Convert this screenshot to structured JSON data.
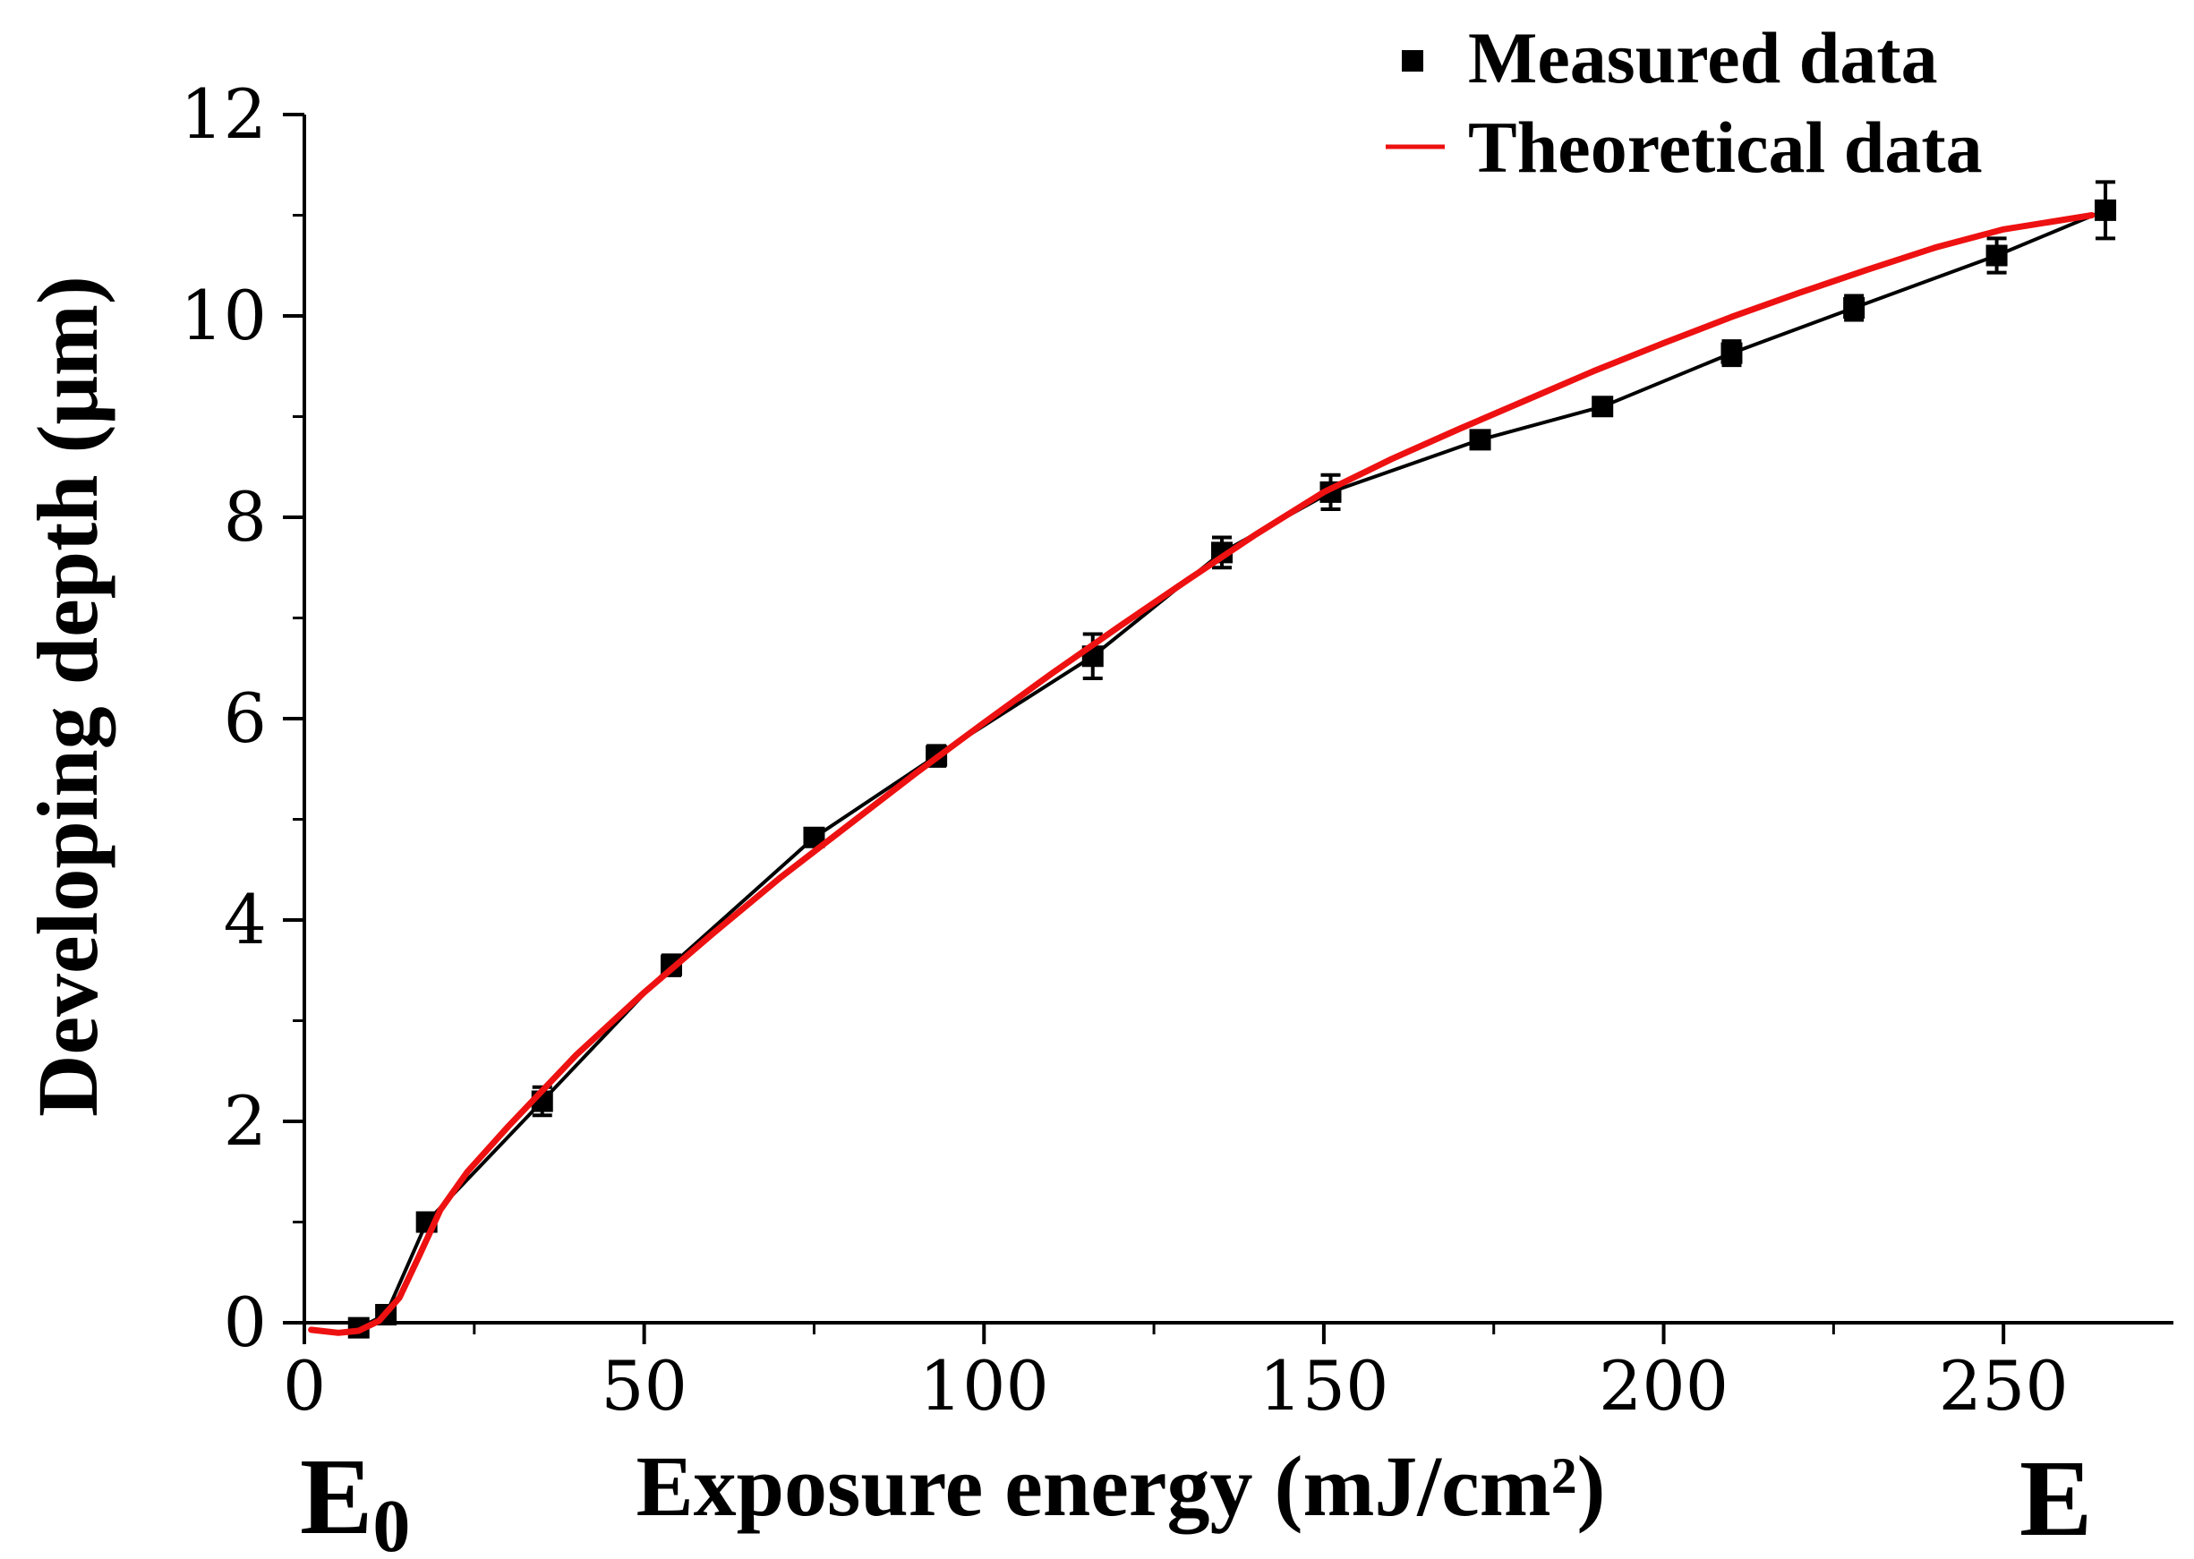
{
  "chart_data": {
    "type": "line",
    "title": "",
    "xlabel": "Exposure energy (mJ/cm²)",
    "ylabel": "Developing depth (μm)",
    "xlim": [
      0,
      275
    ],
    "ylim": [
      0,
      12
    ],
    "x_ticks": [
      0,
      50,
      100,
      150,
      200,
      250
    ],
    "y_ticks": [
      0,
      2,
      4,
      6,
      8,
      10,
      12
    ],
    "x_tick_labels": [
      "0",
      "50",
      "100",
      "150",
      "200",
      "250"
    ],
    "y_tick_labels": [
      "0",
      "2",
      "4",
      "6",
      "8",
      "10",
      "12"
    ],
    "grid": false,
    "legend_position": "top-right",
    "annotations": {
      "e0_main": "E",
      "e0_sub": "0",
      "e_end": "E"
    },
    "series": [
      {
        "name": "Measured data",
        "style": "line-square-errorbar",
        "color": "#000000",
        "x": [
          8,
          12,
          18,
          35,
          54,
          75,
          93,
          116,
          135,
          151,
          173,
          191,
          210,
          228,
          249,
          265
        ],
        "y": [
          -0.05,
          0.08,
          1.0,
          2.2,
          3.55,
          4.82,
          5.63,
          6.62,
          7.65,
          8.25,
          8.77,
          9.1,
          9.63,
          10.08,
          10.6,
          11.05
        ],
        "err": [
          0.03,
          0.05,
          0.05,
          0.14,
          0.1,
          0.08,
          0.1,
          0.22,
          0.15,
          0.17,
          0.08,
          0.07,
          0.12,
          0.12,
          0.17,
          0.28
        ]
      },
      {
        "name": "Theoretical data",
        "style": "line",
        "color": "#ee1111",
        "x": [
          1,
          5,
          8,
          11,
          14,
          17,
          20,
          24,
          30,
          40,
          50,
          60,
          70,
          80,
          90,
          100,
          110,
          120,
          130,
          140,
          150,
          160,
          170,
          180,
          190,
          200,
          210,
          220,
          230,
          240,
          250,
          263
        ],
        "y": [
          -0.07,
          -0.1,
          -0.08,
          0.02,
          0.25,
          0.68,
          1.12,
          1.5,
          1.95,
          2.66,
          3.28,
          3.86,
          4.42,
          4.94,
          5.46,
          5.96,
          6.45,
          6.92,
          7.38,
          7.83,
          8.25,
          8.58,
          8.88,
          9.17,
          9.46,
          9.73,
          9.99,
          10.23,
          10.46,
          10.68,
          10.86,
          11.0
        ]
      }
    ]
  }
}
